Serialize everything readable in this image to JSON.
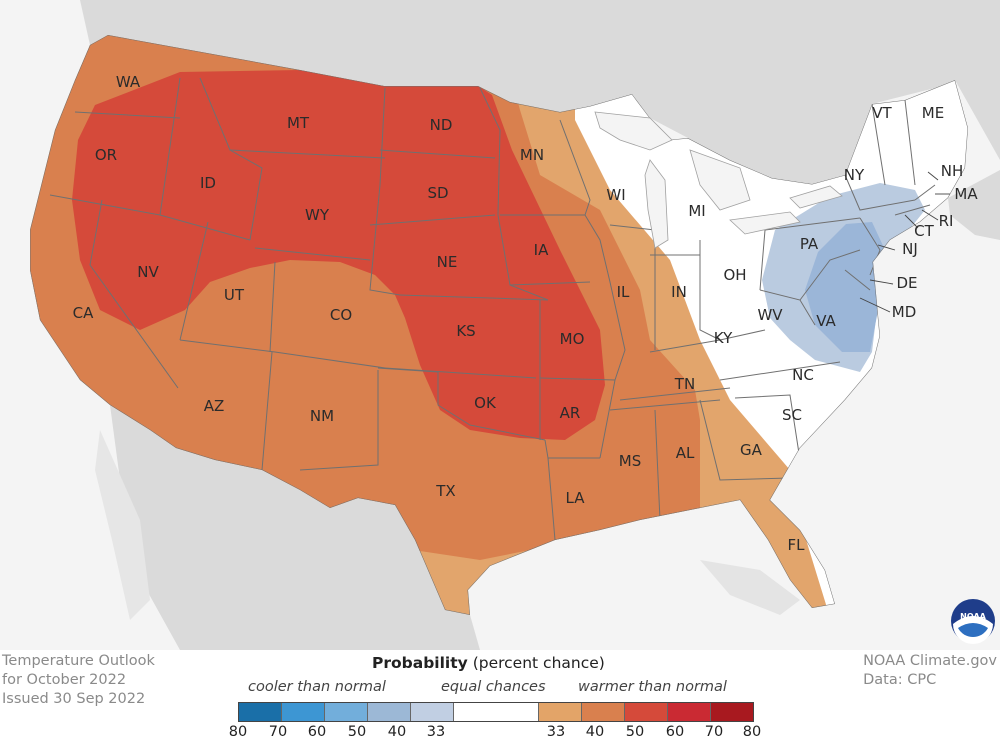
{
  "colors": {
    "ocean": "#f4f4f4",
    "land_outside": "#dadada",
    "equal_chances": "#ffffff",
    "warm_33_40": "#e2a56c",
    "warm_40_50": "#d9804e",
    "warm_50_60": "#d54a3a",
    "cool_33_40": "#bacbe0",
    "cool_40_50": "#9bb6d8",
    "border": "#707070"
  },
  "states": [
    {
      "abbr": "WA"
    },
    {
      "abbr": "OR"
    },
    {
      "abbr": "CA"
    },
    {
      "abbr": "ID"
    },
    {
      "abbr": "NV"
    },
    {
      "abbr": "MT"
    },
    {
      "abbr": "WY"
    },
    {
      "abbr": "UT"
    },
    {
      "abbr": "AZ"
    },
    {
      "abbr": "CO"
    },
    {
      "abbr": "NM"
    },
    {
      "abbr": "ND"
    },
    {
      "abbr": "SD"
    },
    {
      "abbr": "NE"
    },
    {
      "abbr": "KS"
    },
    {
      "abbr": "OK"
    },
    {
      "abbr": "TX"
    },
    {
      "abbr": "MN"
    },
    {
      "abbr": "IA"
    },
    {
      "abbr": "MO"
    },
    {
      "abbr": "AR"
    },
    {
      "abbr": "LA"
    },
    {
      "abbr": "WI"
    },
    {
      "abbr": "IL"
    },
    {
      "abbr": "MI"
    },
    {
      "abbr": "IN"
    },
    {
      "abbr": "OH"
    },
    {
      "abbr": "KY"
    },
    {
      "abbr": "TN"
    },
    {
      "abbr": "MS"
    },
    {
      "abbr": "AL"
    },
    {
      "abbr": "GA"
    },
    {
      "abbr": "FL"
    },
    {
      "abbr": "SC"
    },
    {
      "abbr": "NC"
    },
    {
      "abbr": "VA"
    },
    {
      "abbr": "WV"
    },
    {
      "abbr": "PA"
    },
    {
      "abbr": "NY"
    },
    {
      "abbr": "VT"
    },
    {
      "abbr": "ME"
    },
    {
      "abbr": "NH"
    },
    {
      "abbr": "MA"
    },
    {
      "abbr": "RI"
    },
    {
      "abbr": "CT"
    },
    {
      "abbr": "NJ"
    },
    {
      "abbr": "DE"
    },
    {
      "abbr": "MD"
    }
  ],
  "footer_left": [
    "Temperature Outlook",
    "for October 2022",
    "Issued 30 Sep 2022"
  ],
  "footer_right": [
    "NOAA Climate.gov",
    "Data: CPC"
  ],
  "legend": {
    "title_bold": "Probability",
    "title_rest": "(percent chance)",
    "cooler": "cooler than normal",
    "equal": "equal chances",
    "warmer": "warmer than normal",
    "swatches": [
      "#1a6fa8",
      "#3d96d3",
      "#72aedb",
      "#9cb8d6",
      "#c1cfe3",
      "#ffffff",
      "#e3a468",
      "#d9804e",
      "#d54a3a",
      "#ca2a33",
      "#a8191f"
    ],
    "ticks": [
      "80",
      "70",
      "60",
      "50",
      "40",
      "33",
      "33",
      "40",
      "50",
      "60",
      "70",
      "80"
    ]
  },
  "logo": {
    "text": "NOAA"
  }
}
